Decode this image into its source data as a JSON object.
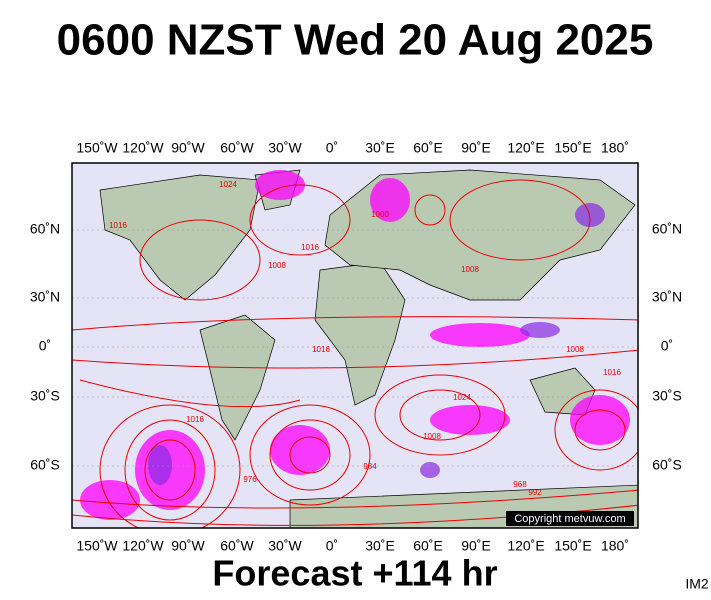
{
  "title": "0600 NZST Wed 20 Aug 2025",
  "longitude_labels": [
    "150˚W",
    "120˚W",
    "90˚W",
    "60˚W",
    "30˚W",
    "0˚",
    "30˚E",
    "60˚E",
    "90˚E",
    "120˚E",
    "150˚E",
    "180˚"
  ],
  "latitude_labels": [
    "60˚N",
    "30˚N",
    "0˚",
    "30˚S",
    "60˚S"
  ],
  "isobar_labels": [
    "1024",
    "1016",
    "1008",
    "1000",
    "1016",
    "1008",
    "1016",
    "1024",
    "1016",
    "1008",
    "984",
    "976",
    "968",
    "992",
    "1008",
    "1016"
  ],
  "copyright": "Copyright metvuw.com",
  "footer": "Forecast +114 hr",
  "image_id": "IM2"
}
